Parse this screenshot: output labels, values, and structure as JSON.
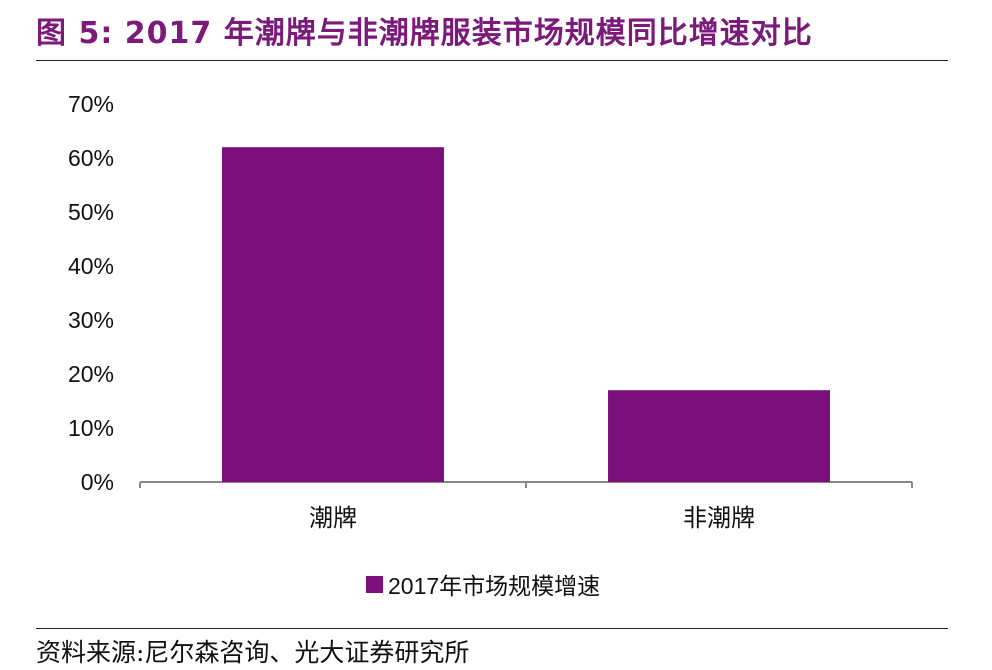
{
  "figure": {
    "title": "图 5: 2017 年潮牌与非潮牌服装市场规模同比增速对比",
    "source": "资料来源:尼尔森咨询、光大证券研究所"
  },
  "colors": {
    "bar": "#7b0f7b",
    "title": "#7b1a7b",
    "axis": "#888888"
  },
  "chart_data": {
    "type": "bar",
    "title": "图 5: 2017 年潮牌与非潮牌服装市场规模同比增速对比",
    "categories": [
      "潮牌",
      "非潮牌"
    ],
    "series": [
      {
        "name": "2017年市场规模增速",
        "values": [
          62,
          17
        ]
      }
    ],
    "unit": "%",
    "ylim": [
      0,
      70
    ],
    "yticks": [
      "0%",
      "10%",
      "20%",
      "30%",
      "40%",
      "50%",
      "60%",
      "70%"
    ],
    "grid": false,
    "legend": "bottom-center"
  }
}
